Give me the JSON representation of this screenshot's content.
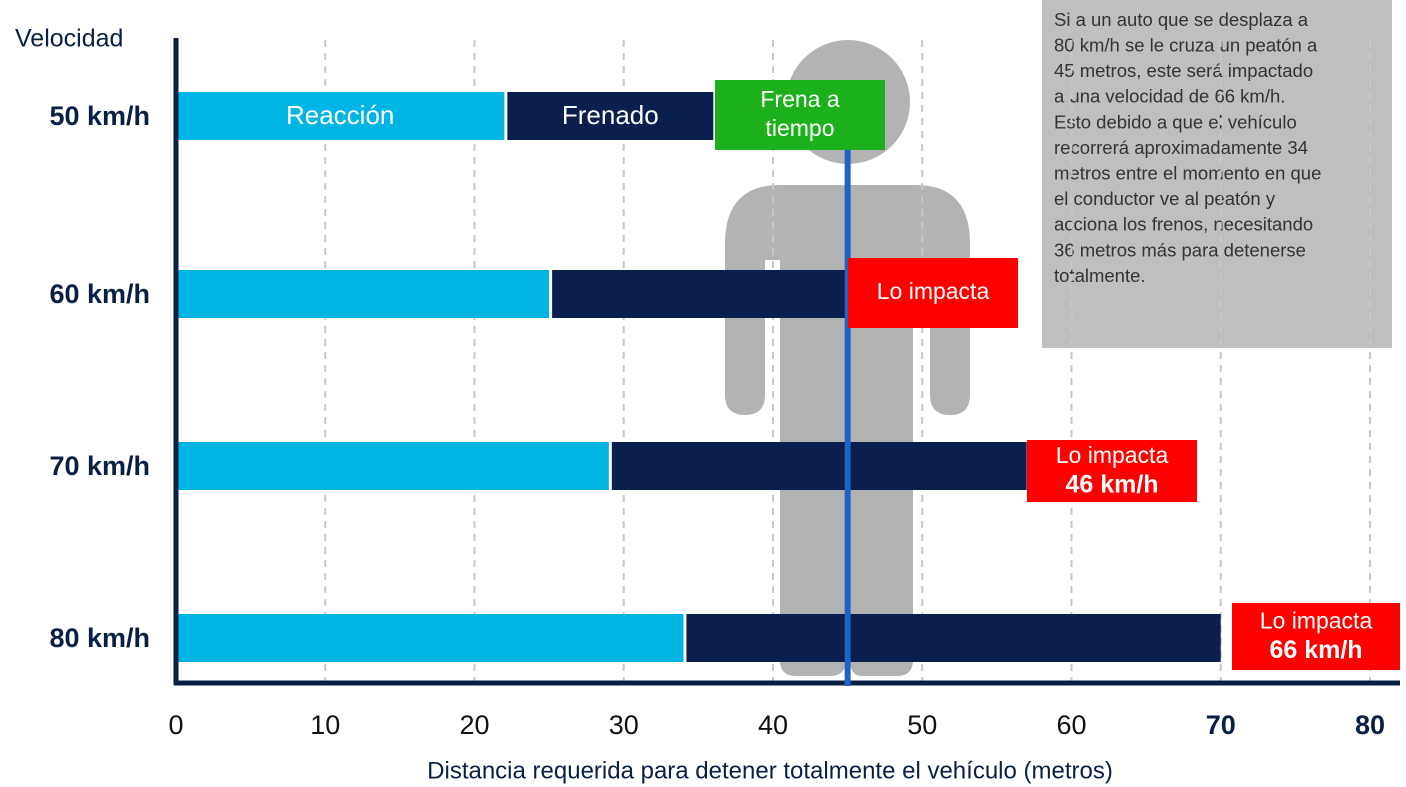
{
  "chart_data": {
    "type": "bar",
    "orientation": "horizontal",
    "stacked": true,
    "ylabel": "Velocidad",
    "xlabel": "Distancia requerida para detener totalmente el vehículo (metros)",
    "categories": [
      "50 km/h",
      "60 km/h",
      "70 km/h",
      "80 km/h"
    ],
    "series": [
      {
        "name": "Reacción",
        "color": "#00b4e4",
        "values": [
          22,
          25,
          29,
          34
        ]
      },
      {
        "name": "Frenado",
        "color": "#0a1f4d",
        "values": [
          14,
          20,
          28,
          36
        ]
      }
    ],
    "xlim": [
      0,
      80
    ],
    "xticks": [
      0,
      10,
      20,
      30,
      40,
      50,
      60,
      70,
      80
    ],
    "grid": true,
    "reference_line": 45,
    "annotations": [
      {
        "lines": [
          "Frena a",
          "tiempo"
        ],
        "color": "#1db01d"
      },
      {
        "lines": [
          "Lo impacta"
        ],
        "color": "#ff0000"
      },
      {
        "lines": [
          "Lo impacta",
          "46 km/h"
        ],
        "color": "#ff0000"
      },
      {
        "lines": [
          "Lo impacta",
          "66 km/h"
        ],
        "color": "#ff0000"
      }
    ],
    "note": [
      "Si a un auto que se desplaza a",
      "80 km/h se le cruza un peatón a",
      "45 metros, este será impactado",
      "a una velocidad de 66 km/h.",
      "Esto debido a que el vehículo",
      "recorrerá aproximadamente 34",
      "metros entre el momento en que",
      "el conductor ve al peatón y",
      "acciona los frenos, necesitando",
      "36 metros más para detenerse",
      "totalmente."
    ]
  }
}
